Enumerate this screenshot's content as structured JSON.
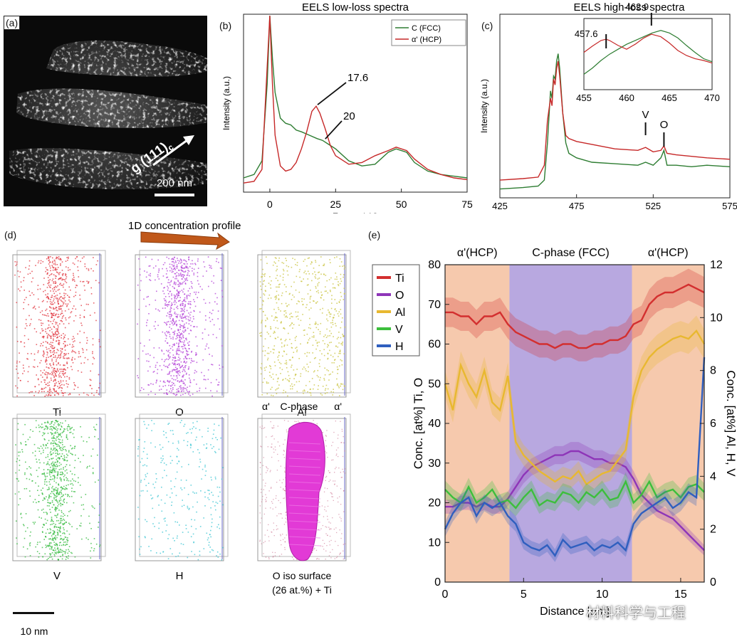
{
  "panel_labels": {
    "a": "(a)",
    "b": "(b)",
    "c": "(c)",
    "d": "(d)",
    "e": "(e)"
  },
  "panel_a": {
    "g_label": "g (111)",
    "g_subscript": "c",
    "scale_bar": "200 nm"
  },
  "panel_d": {
    "arrow_label": "1D concentration profile",
    "maps": [
      {
        "label": "Ti",
        "color": "#e0303a"
      },
      {
        "label": "O",
        "color": "#b03ad6"
      },
      {
        "label": "Al",
        "color": "#c8c23a"
      },
      {
        "label": "V",
        "color": "#2fb83a"
      },
      {
        "label": "H",
        "color": "#3ac4d2"
      }
    ],
    "iso_label_line1": "O iso surface",
    "iso_label_line2": "(26 at.%) + Ti",
    "iso_top_left": "α'",
    "iso_top_mid": "C-phase",
    "iso_top_right": "α'",
    "scale_bar": "10 nm"
  },
  "watermark": "材料科学与工程",
  "chart_data": [
    {
      "id": "b",
      "type": "line",
      "title": "EELS low-loss spectra",
      "xlabel": "Energy (eV)",
      "ylabel": "Intensity (a.u.)",
      "xlim": [
        -10,
        75
      ],
      "ylim": [
        0,
        1
      ],
      "xticks": [
        0,
        25,
        50,
        75
      ],
      "legend_position": "top-right",
      "series": [
        {
          "name": "C (FCC)",
          "color": "#2e7d32",
          "x": [
            -10,
            -6,
            -3,
            -1,
            0,
            1,
            2,
            4,
            6,
            8,
            10,
            12,
            15,
            18,
            20,
            22,
            25,
            30,
            35,
            40,
            45,
            48,
            52,
            55,
            60,
            65,
            70,
            75
          ],
          "y": [
            0.05,
            0.07,
            0.15,
            0.6,
            1.0,
            0.75,
            0.55,
            0.4,
            0.37,
            0.36,
            0.33,
            0.32,
            0.3,
            0.28,
            0.27,
            0.25,
            0.22,
            0.15,
            0.12,
            0.13,
            0.2,
            0.22,
            0.2,
            0.14,
            0.09,
            0.07,
            0.06,
            0.05
          ]
        },
        {
          "name": "α' (HCP)",
          "color": "#c62828",
          "x": [
            -10,
            -6,
            -3,
            -1,
            0,
            1,
            2,
            4,
            6,
            8,
            10,
            12,
            14,
            16,
            17.6,
            19,
            21,
            23,
            25,
            30,
            35,
            40,
            45,
            48,
            52,
            55,
            60,
            65,
            70,
            75
          ],
          "y": [
            0.02,
            0.03,
            0.1,
            0.7,
            1.0,
            0.6,
            0.3,
            0.12,
            0.09,
            0.1,
            0.14,
            0.22,
            0.32,
            0.44,
            0.47,
            0.43,
            0.34,
            0.24,
            0.18,
            0.13,
            0.14,
            0.18,
            0.21,
            0.23,
            0.21,
            0.16,
            0.1,
            0.07,
            0.05,
            0.04
          ]
        }
      ],
      "annotations": [
        "17.6",
        "20"
      ]
    },
    {
      "id": "c",
      "type": "line",
      "title": "EELS high-loss spectra",
      "xlabel": "Energy (eV)",
      "ylabel": "Intensity (a.u.)",
      "xlim": [
        425,
        575
      ],
      "ylim": [
        0,
        1
      ],
      "xticks": [
        425,
        475,
        525,
        575
      ],
      "series": [
        {
          "name": "C (FCC)",
          "color": "#2e7d32",
          "x": [
            425,
            440,
            450,
            454,
            456,
            458,
            459,
            460,
            461,
            462,
            463,
            464,
            466,
            468,
            470,
            475,
            485,
            500,
            515,
            520,
            525,
            530,
            532,
            534,
            540,
            550,
            560,
            575
          ],
          "y": [
            0.04,
            0.05,
            0.06,
            0.1,
            0.35,
            0.7,
            0.65,
            0.8,
            0.78,
            0.9,
            0.95,
            0.85,
            0.55,
            0.35,
            0.28,
            0.25,
            0.22,
            0.21,
            0.2,
            0.22,
            0.2,
            0.25,
            0.3,
            0.2,
            0.2,
            0.19,
            0.2,
            0.19
          ]
        },
        {
          "name": "α' (HCP)",
          "color": "#c62828",
          "x": [
            425,
            440,
            450,
            454,
            456,
            458,
            459,
            460,
            461,
            462,
            463,
            464,
            466,
            468,
            470,
            475,
            485,
            500,
            515,
            520,
            525,
            530,
            532,
            534,
            540,
            550,
            560,
            575
          ],
          "y": [
            0.1,
            0.11,
            0.12,
            0.2,
            0.5,
            0.65,
            0.6,
            0.78,
            0.74,
            0.85,
            0.9,
            0.8,
            0.55,
            0.4,
            0.38,
            0.36,
            0.34,
            0.31,
            0.3,
            0.32,
            0.29,
            0.3,
            0.33,
            0.28,
            0.27,
            0.26,
            0.25,
            0.24
          ]
        }
      ],
      "annotations": [
        "V",
        "O"
      ],
      "inset": {
        "xlim": [
          455,
          470
        ],
        "xticks": [
          455,
          460,
          465,
          470
        ],
        "annotations": [
          "457.6",
          "462.9"
        ],
        "series": [
          {
            "name": "C (FCC)",
            "x": [
              455,
              456,
              457,
              458,
              459,
              460,
              461,
              462,
              463,
              464,
              465,
              466,
              467,
              468,
              469,
              470
            ],
            "y": [
              0.2,
              0.3,
              0.42,
              0.52,
              0.6,
              0.68,
              0.74,
              0.8,
              0.86,
              0.9,
              0.86,
              0.78,
              0.66,
              0.55,
              0.45,
              0.4
            ]
          },
          {
            "name": "α' (HCP)",
            "x": [
              455,
              456,
              457,
              457.6,
              458,
              459,
              460,
              461,
              462,
              462.9,
              464,
              465,
              466,
              467,
              468,
              469,
              470
            ],
            "y": [
              0.55,
              0.65,
              0.74,
              0.76,
              0.74,
              0.66,
              0.6,
              0.68,
              0.78,
              0.84,
              0.8,
              0.7,
              0.58,
              0.5,
              0.45,
              0.42,
              0.38
            ]
          }
        ]
      }
    },
    {
      "id": "e",
      "type": "line",
      "xlabel": "Distance [nm]",
      "ylabel_left": "Conc. [at%] Ti, O",
      "ylabel_right": "Conc. [at%] Al, H, V",
      "xlim": [
        0,
        16.5
      ],
      "ylim_left": [
        0,
        80
      ],
      "ylim_right": [
        0,
        12
      ],
      "xticks": [
        0,
        5,
        10,
        15
      ],
      "yticks_left": [
        0,
        10,
        20,
        30,
        40,
        50,
        60,
        70,
        80
      ],
      "yticks_right": [
        0,
        2,
        4,
        6,
        8,
        10,
        12
      ],
      "legend_position": "top-left",
      "regions": [
        {
          "label": "α'(HCP)",
          "from": 0,
          "to": 4.1,
          "color": "#f6c9ad"
        },
        {
          "label": "C-phase (FCC)",
          "from": 4.1,
          "to": 11.9,
          "color": "#b8a8e0"
        },
        {
          "label": "α'(HCP)",
          "from": 11.9,
          "to": 16.5,
          "color": "#f6c9ad"
        }
      ],
      "x": [
        0,
        0.5,
        1,
        1.5,
        2,
        2.5,
        3,
        3.5,
        4,
        4.5,
        5,
        5.5,
        6,
        6.5,
        7,
        7.5,
        8,
        8.5,
        9,
        9.5,
        10,
        10.5,
        11,
        11.5,
        12,
        12.5,
        13,
        13.5,
        14,
        14.5,
        15,
        15.5,
        16,
        16.5
      ],
      "series": [
        {
          "name": "Ti",
          "axis": "left",
          "color": "#d32f2f",
          "values": [
            68,
            68,
            67,
            67,
            65,
            67,
            67,
            68,
            65,
            63,
            62,
            61,
            60,
            60,
            59,
            60,
            60,
            59,
            59,
            60,
            60,
            61,
            61,
            62,
            65,
            66,
            70,
            72,
            73,
            73,
            74,
            75,
            74,
            73
          ]
        },
        {
          "name": "O",
          "axis": "left",
          "color": "#8e35b8",
          "values": [
            19,
            19,
            20,
            20,
            19,
            20,
            19,
            19,
            21,
            24,
            27,
            29,
            30,
            31,
            32,
            32,
            33,
            33,
            32,
            31,
            31,
            30,
            30,
            29,
            26,
            22,
            20,
            18,
            17,
            16,
            14,
            12,
            10,
            8
          ]
        },
        {
          "name": "Al",
          "axis": "right",
          "color": "#e8b830",
          "values": [
            7.5,
            6.5,
            8.2,
            7.5,
            7.0,
            8.0,
            6.8,
            6.5,
            7.8,
            5.3,
            4.8,
            4.5,
            4.2,
            4.0,
            3.8,
            4.0,
            3.9,
            4.2,
            3.7,
            3.9,
            4.1,
            4.2,
            4.6,
            5.0,
            7.0,
            8.0,
            8.5,
            8.8,
            9.0,
            9.2,
            9.3,
            9.2,
            9.5,
            9.0
          ]
        },
        {
          "name": "V",
          "axis": "right",
          "color": "#3cbf3c",
          "values": [
            3.5,
            3.2,
            3.0,
            3.6,
            3.0,
            3.2,
            3.5,
            3.0,
            3.1,
            2.8,
            3.2,
            3.5,
            2.9,
            3.1,
            3.0,
            3.4,
            3.3,
            3.0,
            3.4,
            3.2,
            3.5,
            3.1,
            3.2,
            3.8,
            3.0,
            3.3,
            3.8,
            3.2,
            3.4,
            3.5,
            3.2,
            3.6,
            3.7,
            3.4
          ]
        },
        {
          "name": "H",
          "axis": "right",
          "color": "#2f5fbf",
          "values": [
            2.0,
            2.6,
            3.0,
            3.2,
            2.5,
            3.0,
            2.8,
            3.0,
            2.5,
            2.2,
            1.5,
            1.3,
            1.2,
            1.4,
            1.0,
            1.6,
            1.3,
            1.4,
            1.5,
            1.2,
            1.4,
            1.3,
            1.5,
            1.2,
            2.2,
            2.6,
            2.8,
            3.0,
            3.2,
            2.8,
            3.0,
            3.4,
            3.2,
            8.5
          ]
        }
      ]
    }
  ]
}
